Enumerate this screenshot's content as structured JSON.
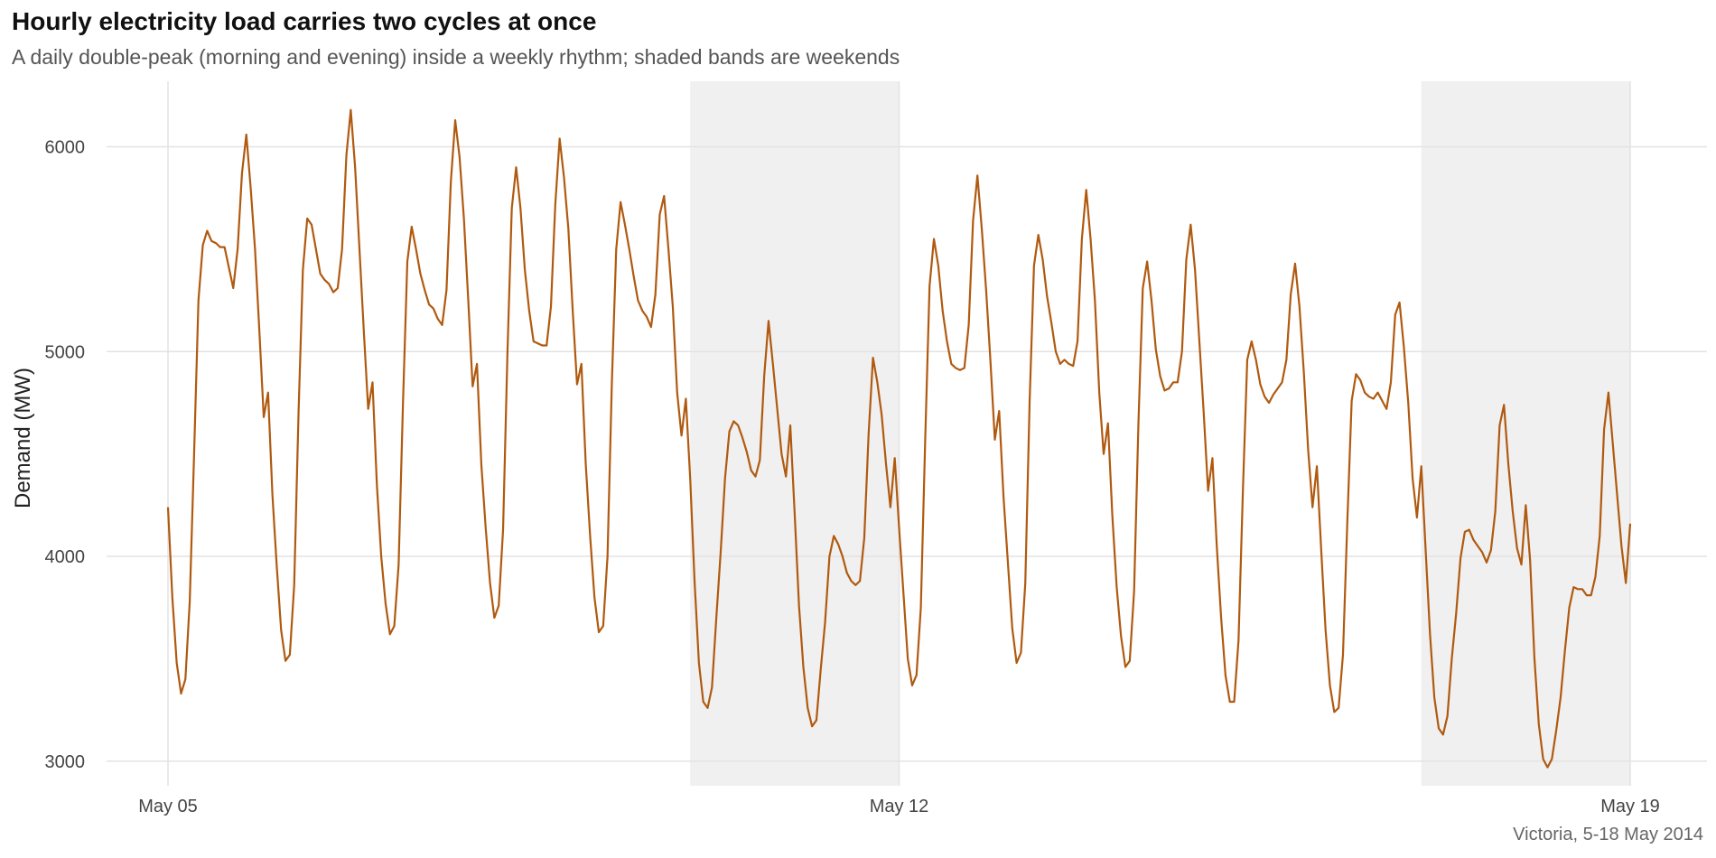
{
  "header": {
    "title": "Hourly electricity load carries two cycles at once",
    "subtitle": "A daily double-peak (morning and evening) inside a weekly rhythm; shaded bands are weekends"
  },
  "caption": "Victoria, 5-18 May 2014",
  "colors": {
    "line": "#b05a10",
    "weekend_band": "#f0f0f0",
    "grid": "#e3e3e3"
  },
  "chart_data": {
    "type": "line",
    "title": "Hourly electricity load carries two cycles at once",
    "subtitle": "A daily double-peak (morning and evening) inside a weekly rhythm; shaded bands are weekends",
    "xlabel": "",
    "ylabel": "Demand (MW)",
    "x_axis": {
      "type": "date",
      "range": [
        "2014-05-05",
        "2014-05-19"
      ],
      "ticks": [
        {
          "date": "2014-05-05",
          "label": "May 05"
        },
        {
          "date": "2014-05-12",
          "label": "May 12"
        },
        {
          "date": "2014-05-19",
          "label": "May 19"
        }
      ]
    },
    "y_axis": {
      "range": [
        2880,
        6320
      ],
      "ticks": [
        3000,
        4000,
        5000,
        6000
      ]
    },
    "grid": true,
    "legend": "none",
    "weekend_bands": [
      {
        "start": "2014-05-10",
        "end": "2014-05-12"
      },
      {
        "start": "2014-05-17",
        "end": "2014-05-19"
      }
    ],
    "series": [
      {
        "frequency": "hourly",
        "start": "2014-05-05T00:00",
        "values": [
          4240,
          3800,
          3480,
          3330,
          3400,
          3780,
          4500,
          5250,
          5520,
          5590,
          5540,
          5530,
          5510,
          5510,
          5410,
          5310,
          5500,
          5870,
          6060,
          5800,
          5500,
          5100,
          4680,
          4800,
          4300,
          3950,
          3640,
          3490,
          3520,
          3860,
          4700,
          5400,
          5650,
          5620,
          5500,
          5380,
          5350,
          5330,
          5290,
          5310,
          5500,
          5960,
          6180,
          5900,
          5500,
          5100,
          4720,
          4850,
          4350,
          4000,
          3770,
          3620,
          3660,
          3960,
          4750,
          5440,
          5610,
          5500,
          5380,
          5300,
          5230,
          5210,
          5160,
          5130,
          5300,
          5830,
          6130,
          5950,
          5650,
          5250,
          4830,
          4940,
          4450,
          4140,
          3870,
          3700,
          3760,
          4130,
          4990,
          5700,
          5900,
          5700,
          5400,
          5200,
          5050,
          5040,
          5030,
          5030,
          5220,
          5720,
          6040,
          5850,
          5600,
          5200,
          4840,
          4940,
          4450,
          4100,
          3800,
          3630,
          3660,
          4000,
          4850,
          5500,
          5730,
          5620,
          5500,
          5370,
          5250,
          5200,
          5170,
          5120,
          5280,
          5670,
          5760,
          5500,
          5220,
          4800,
          4590,
          4770,
          4380,
          3880,
          3480,
          3290,
          3260,
          3360,
          3700,
          4020,
          4380,
          4610,
          4660,
          4640,
          4580,
          4510,
          4420,
          4390,
          4470,
          4880,
          5150,
          4940,
          4720,
          4500,
          4390,
          4640,
          4210,
          3760,
          3460,
          3260,
          3170,
          3200,
          3450,
          3680,
          4000,
          4100,
          4060,
          4000,
          3920,
          3880,
          3860,
          3880,
          4090,
          4600,
          4970,
          4850,
          4690,
          4450,
          4240,
          4480,
          4140,
          3820,
          3500,
          3370,
          3420,
          3750,
          4570,
          5320,
          5550,
          5420,
          5200,
          5050,
          4940,
          4920,
          4910,
          4920,
          5130,
          5640,
          5860,
          5600,
          5300,
          4950,
          4570,
          4710,
          4290,
          3970,
          3650,
          3480,
          3530,
          3870,
          4760,
          5420,
          5570,
          5450,
          5270,
          5140,
          5000,
          4940,
          4960,
          4940,
          4930,
          5050,
          5550,
          5790,
          5550,
          5250,
          4800,
          4500,
          4650,
          4200,
          3850,
          3610,
          3460,
          3490,
          3830,
          4650,
          5310,
          5440,
          5250,
          5010,
          4880,
          4810,
          4820,
          4850,
          4850,
          5000,
          5450,
          5620,
          5400,
          5050,
          4700,
          4320,
          4480,
          4050,
          3700,
          3420,
          3290,
          3290,
          3590,
          4320,
          4960,
          5050,
          4960,
          4840,
          4780,
          4750,
          4790,
          4820,
          4850,
          4960,
          5280,
          5430,
          5220,
          4900,
          4520,
          4240,
          4440,
          4030,
          3640,
          3370,
          3240,
          3260,
          3520,
          4170,
          4760,
          4890,
          4860,
          4800,
          4780,
          4770,
          4800,
          4760,
          4720,
          4850,
          5180,
          5240,
          5020,
          4750,
          4380,
          4190,
          4440,
          4030,
          3620,
          3310,
          3160,
          3130,
          3220,
          3500,
          3720,
          3990,
          4120,
          4130,
          4080,
          4050,
          4020,
          3970,
          4030,
          4220,
          4640,
          4740,
          4450,
          4220,
          4040,
          3960,
          4250,
          3980,
          3500,
          3180,
          3010,
          2970,
          3010,
          3150,
          3310,
          3540,
          3750,
          3850,
          3840,
          3840,
          3810,
          3810,
          3900,
          4100,
          4620,
          4800,
          4550,
          4300,
          4050,
          3870,
          4160
        ]
      }
    ]
  }
}
